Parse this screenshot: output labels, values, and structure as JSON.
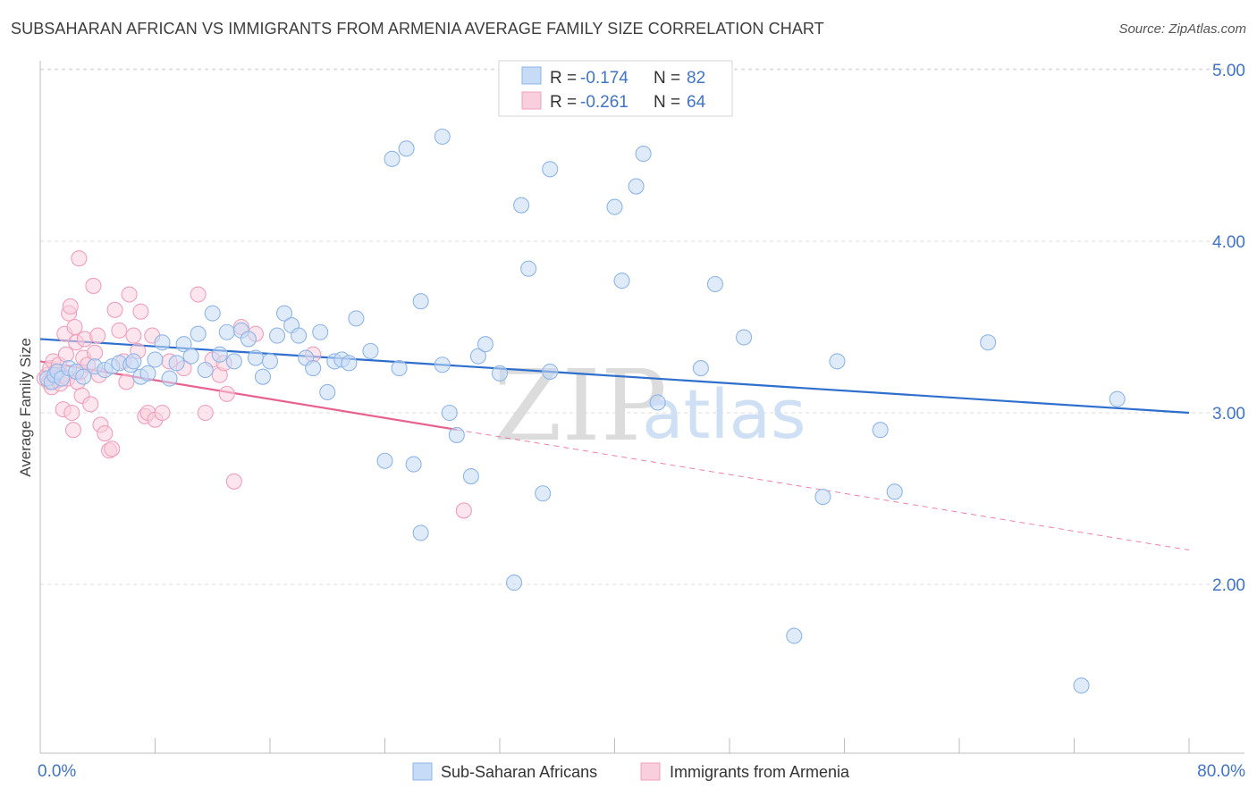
{
  "header": {
    "title": "SUBSAHARAN AFRICAN VS IMMIGRANTS FROM ARMENIA AVERAGE FAMILY SIZE CORRELATION CHART",
    "source": "Source: ZipAtlas.com"
  },
  "watermark": {
    "zip": "ZIP",
    "atlas": "atlas"
  },
  "chart_data": {
    "type": "scatter",
    "title": "SUBSAHARAN AFRICAN VS IMMIGRANTS FROM ARMENIA AVERAGE FAMILY SIZE CORRELATION CHART",
    "xlabel": "",
    "ylabel": "Average Family Size",
    "xlim": [
      0,
      80
    ],
    "ylim": [
      1.0,
      5.15
    ],
    "x_tick_labels": {
      "min": "0.0%",
      "max": "80.0%"
    },
    "x_minor_ticks": [
      0,
      8,
      16,
      24,
      32,
      40,
      48,
      56,
      64,
      72,
      80
    ],
    "y_ticks": [
      {
        "value": 2.0,
        "label": "2.00"
      },
      {
        "value": 3.0,
        "label": "3.00"
      },
      {
        "value": 4.0,
        "label": "4.00"
      },
      {
        "value": 5.0,
        "label": "5.00"
      }
    ],
    "grid": true,
    "stats": [
      {
        "r_label": "R =",
        "r_value": "-0.174",
        "n_label": "N =",
        "n_value": "82"
      },
      {
        "r_label": "R =",
        "r_value": "-0.261",
        "n_label": "N =",
        "n_value": "64"
      }
    ],
    "series": [
      {
        "name": "Sub-Saharan Africans",
        "color": "#8fb6e8",
        "fill": "#c6dbf5",
        "line_color": "#2e6fce",
        "trend": {
          "x0": 0,
          "y0": 3.43,
          "x1": 80,
          "y1": 3.0
        },
        "points": [
          [
            0.5,
            3.2
          ],
          [
            0.8,
            3.18
          ],
          [
            1.0,
            3.22
          ],
          [
            1.2,
            3.24
          ],
          [
            1.5,
            3.2
          ],
          [
            2.0,
            3.26
          ],
          [
            2.5,
            3.24
          ],
          [
            3.0,
            3.21
          ],
          [
            3.8,
            3.27
          ],
          [
            4.5,
            3.25
          ],
          [
            5.0,
            3.27
          ],
          [
            5.5,
            3.29
          ],
          [
            6.3,
            3.28
          ],
          [
            6.5,
            3.3
          ],
          [
            7.0,
            3.21
          ],
          [
            7.5,
            3.23
          ],
          [
            8.0,
            3.31
          ],
          [
            8.5,
            3.41
          ],
          [
            9.0,
            3.2
          ],
          [
            9.5,
            3.29
          ],
          [
            10.0,
            3.4
          ],
          [
            10.5,
            3.33
          ],
          [
            11.0,
            3.46
          ],
          [
            11.5,
            3.25
          ],
          [
            12.0,
            3.58
          ],
          [
            12.5,
            3.34
          ],
          [
            13.0,
            3.47
          ],
          [
            13.5,
            3.3
          ],
          [
            14.0,
            3.48
          ],
          [
            14.5,
            3.43
          ],
          [
            15.0,
            3.32
          ],
          [
            15.5,
            3.21
          ],
          [
            16.0,
            3.3
          ],
          [
            16.5,
            3.45
          ],
          [
            17.0,
            3.58
          ],
          [
            17.5,
            3.51
          ],
          [
            18.0,
            3.45
          ],
          [
            18.5,
            3.32
          ],
          [
            19.0,
            3.26
          ],
          [
            19.5,
            3.47
          ],
          [
            20.0,
            3.12
          ],
          [
            20.5,
            3.3
          ],
          [
            21.0,
            3.31
          ],
          [
            21.5,
            3.29
          ],
          [
            22.0,
            3.55
          ],
          [
            23.0,
            3.36
          ],
          [
            24.0,
            2.72
          ],
          [
            24.5,
            4.48
          ],
          [
            25.0,
            3.26
          ],
          [
            25.5,
            4.54
          ],
          [
            26.0,
            2.7
          ],
          [
            26.5,
            2.3
          ],
          [
            26.5,
            3.65
          ],
          [
            28.0,
            3.28
          ],
          [
            28.0,
            4.61
          ],
          [
            28.5,
            3.0
          ],
          [
            29.0,
            2.87
          ],
          [
            30.0,
            2.63
          ],
          [
            30.5,
            3.33
          ],
          [
            31.0,
            3.4
          ],
          [
            32.0,
            3.23
          ],
          [
            33.0,
            2.01
          ],
          [
            33.5,
            4.21
          ],
          [
            34.0,
            3.84
          ],
          [
            35.0,
            2.53
          ],
          [
            35.5,
            3.24
          ],
          [
            35.5,
            4.42
          ],
          [
            40.0,
            4.2
          ],
          [
            40.5,
            3.77
          ],
          [
            41.5,
            4.32
          ],
          [
            42.0,
            4.51
          ],
          [
            43.0,
            3.06
          ],
          [
            46.0,
            3.26
          ],
          [
            47.0,
            3.75
          ],
          [
            49.0,
            3.44
          ],
          [
            52.5,
            1.7
          ],
          [
            54.5,
            2.51
          ],
          [
            55.5,
            3.3
          ],
          [
            58.5,
            2.9
          ],
          [
            59.5,
            2.54
          ],
          [
            66.0,
            3.41
          ],
          [
            75.0,
            3.08
          ],
          [
            72.5,
            1.41
          ]
        ]
      },
      {
        "name": "Immigrants from Armenia",
        "color": "#f0a0bd",
        "fill": "#f9cfdd",
        "line_color": "#e8628e",
        "trend": {
          "x0": 0,
          "y0": 3.3,
          "x1": 80,
          "y1": 2.2,
          "solid_until_x": 29
        },
        "points": [
          [
            0.3,
            3.2
          ],
          [
            0.5,
            3.22
          ],
          [
            0.6,
            3.18
          ],
          [
            0.7,
            3.26
          ],
          [
            0.8,
            3.15
          ],
          [
            0.9,
            3.3
          ],
          [
            1.0,
            3.21
          ],
          [
            1.1,
            3.24
          ],
          [
            1.2,
            3.19
          ],
          [
            1.3,
            3.28
          ],
          [
            1.4,
            3.17
          ],
          [
            1.5,
            3.22
          ],
          [
            1.6,
            3.02
          ],
          [
            1.7,
            3.46
          ],
          [
            1.8,
            3.34
          ],
          [
            1.9,
            3.2
          ],
          [
            2.0,
            3.58
          ],
          [
            2.1,
            3.62
          ],
          [
            2.2,
            3.0
          ],
          [
            2.3,
            2.9
          ],
          [
            2.4,
            3.5
          ],
          [
            2.5,
            3.41
          ],
          [
            2.6,
            3.18
          ],
          [
            2.7,
            3.9
          ],
          [
            2.8,
            3.24
          ],
          [
            2.9,
            3.1
          ],
          [
            3.0,
            3.32
          ],
          [
            3.1,
            3.43
          ],
          [
            3.3,
            3.28
          ],
          [
            3.5,
            3.05
          ],
          [
            3.7,
            3.74
          ],
          [
            3.8,
            3.35
          ],
          [
            4.0,
            3.45
          ],
          [
            4.1,
            3.22
          ],
          [
            4.2,
            2.93
          ],
          [
            4.5,
            2.88
          ],
          [
            4.8,
            2.78
          ],
          [
            5.0,
            2.79
          ],
          [
            5.2,
            3.6
          ],
          [
            5.5,
            3.48
          ],
          [
            5.8,
            3.3
          ],
          [
            6.0,
            3.18
          ],
          [
            6.2,
            3.69
          ],
          [
            6.5,
            3.45
          ],
          [
            6.8,
            3.36
          ],
          [
            7.0,
            3.59
          ],
          [
            7.3,
            2.98
          ],
          [
            7.5,
            3.0
          ],
          [
            7.8,
            3.45
          ],
          [
            8.0,
            2.96
          ],
          [
            8.5,
            3.0
          ],
          [
            9.0,
            3.3
          ],
          [
            10.0,
            3.26
          ],
          [
            11.0,
            3.69
          ],
          [
            11.5,
            3.0
          ],
          [
            12.0,
            3.31
          ],
          [
            12.5,
            3.22
          ],
          [
            12.8,
            3.29
          ],
          [
            13.0,
            3.11
          ],
          [
            13.5,
            2.6
          ],
          [
            14.0,
            3.5
          ],
          [
            15.0,
            3.46
          ],
          [
            19.0,
            3.34
          ],
          [
            29.5,
            2.43
          ]
        ]
      }
    ]
  }
}
